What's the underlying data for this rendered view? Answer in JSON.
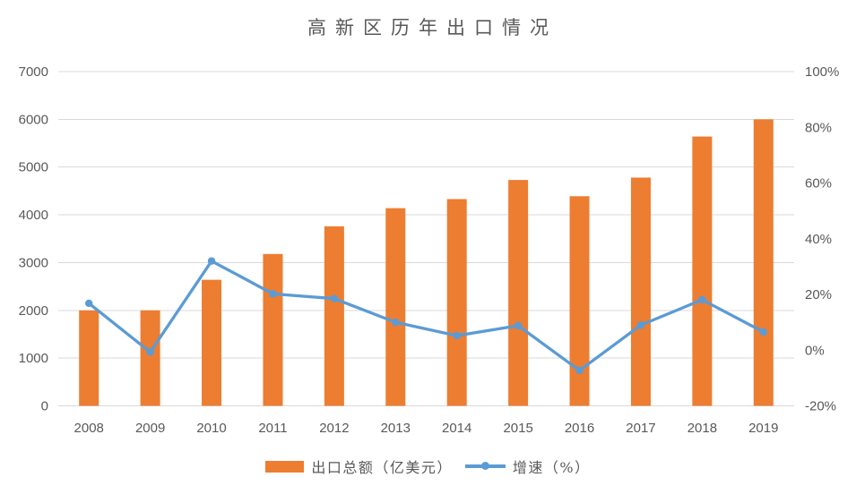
{
  "title": "高新区历年出口情况",
  "colors": {
    "bar": "#ED7D31",
    "line": "#5B9BD5",
    "grid": "#D9D9D9",
    "axis_text": "#595959",
    "title_text": "#595959",
    "background": "#FFFFFF"
  },
  "legend": {
    "bar_label": "出口总额（亿美元）",
    "line_label": "增速（%）"
  },
  "chart_data": {
    "type": "combo",
    "title": "高新区历年出口情况",
    "categories": [
      "2008",
      "2009",
      "2010",
      "2011",
      "2012",
      "2013",
      "2014",
      "2015",
      "2016",
      "2017",
      "2018",
      "2019"
    ],
    "series": [
      {
        "name": "出口总额（亿美元）",
        "type": "bar",
        "axis": "left",
        "values": [
          2000,
          2000,
          2640,
          3180,
          3760,
          4140,
          4330,
          4730,
          4390,
          4780,
          5640,
          6000
        ]
      },
      {
        "name": "增速（%）",
        "type": "line",
        "axis": "right",
        "values": [
          16.8,
          -0.7,
          32.0,
          20.2,
          18.5,
          10.0,
          5.2,
          8.8,
          -7.3,
          9.0,
          18.1,
          6.5
        ]
      }
    ],
    "left_axis": {
      "min": 0,
      "max": 7000,
      "step": 1000,
      "tick_labels": [
        "0",
        "1000",
        "2000",
        "3000",
        "4000",
        "5000",
        "6000",
        "7000"
      ]
    },
    "right_axis": {
      "min": -20,
      "max": 100,
      "step": 20,
      "tick_labels": [
        "-20%",
        "0%",
        "20%",
        "40%",
        "60%",
        "80%",
        "100%"
      ]
    },
    "grid": "horizontal",
    "legend_position": "bottom",
    "xlabel": "",
    "ylabel": ""
  }
}
